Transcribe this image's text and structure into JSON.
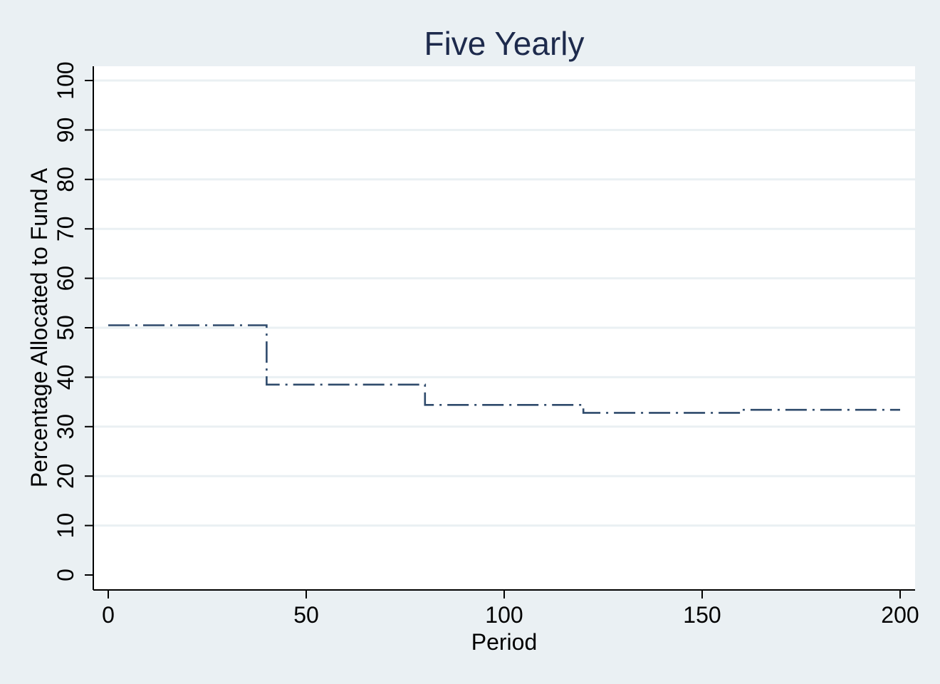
{
  "chart_data": {
    "type": "line",
    "title": "Five Yearly",
    "xlabel": "Period",
    "ylabel": "Percentage Allocated to Fund A",
    "xlim": [
      0,
      200
    ],
    "ylim": [
      0,
      100
    ],
    "x_ticks": [
      0,
      50,
      100,
      150,
      200
    ],
    "x_tick_labels": [
      "0",
      "50",
      "100",
      "150",
      "200"
    ],
    "y_ticks": [
      0,
      10,
      20,
      30,
      40,
      50,
      60,
      70,
      80,
      90,
      100
    ],
    "y_tick_labels": [
      "0",
      "10",
      "20",
      "30",
      "40",
      "50",
      "60",
      "70",
      "80",
      "90",
      "100"
    ],
    "grid": true,
    "legend": "none",
    "line_style": "dash-dot step",
    "series": [
      {
        "x": [
          0,
          40,
          40,
          80,
          80,
          120,
          120,
          160,
          160,
          200
        ],
        "y": [
          50.5,
          50.5,
          38.5,
          38.5,
          34.4,
          34.4,
          32.8,
          32.8,
          33.4,
          33.4
        ],
        "color": "#2e4a6b"
      }
    ],
    "colors": {
      "background": "#eaf0f3",
      "plot_area": "#ffffff",
      "grid": "#eaf0f3",
      "title": "#1d2a4c",
      "line": "#2e4a6b"
    }
  }
}
